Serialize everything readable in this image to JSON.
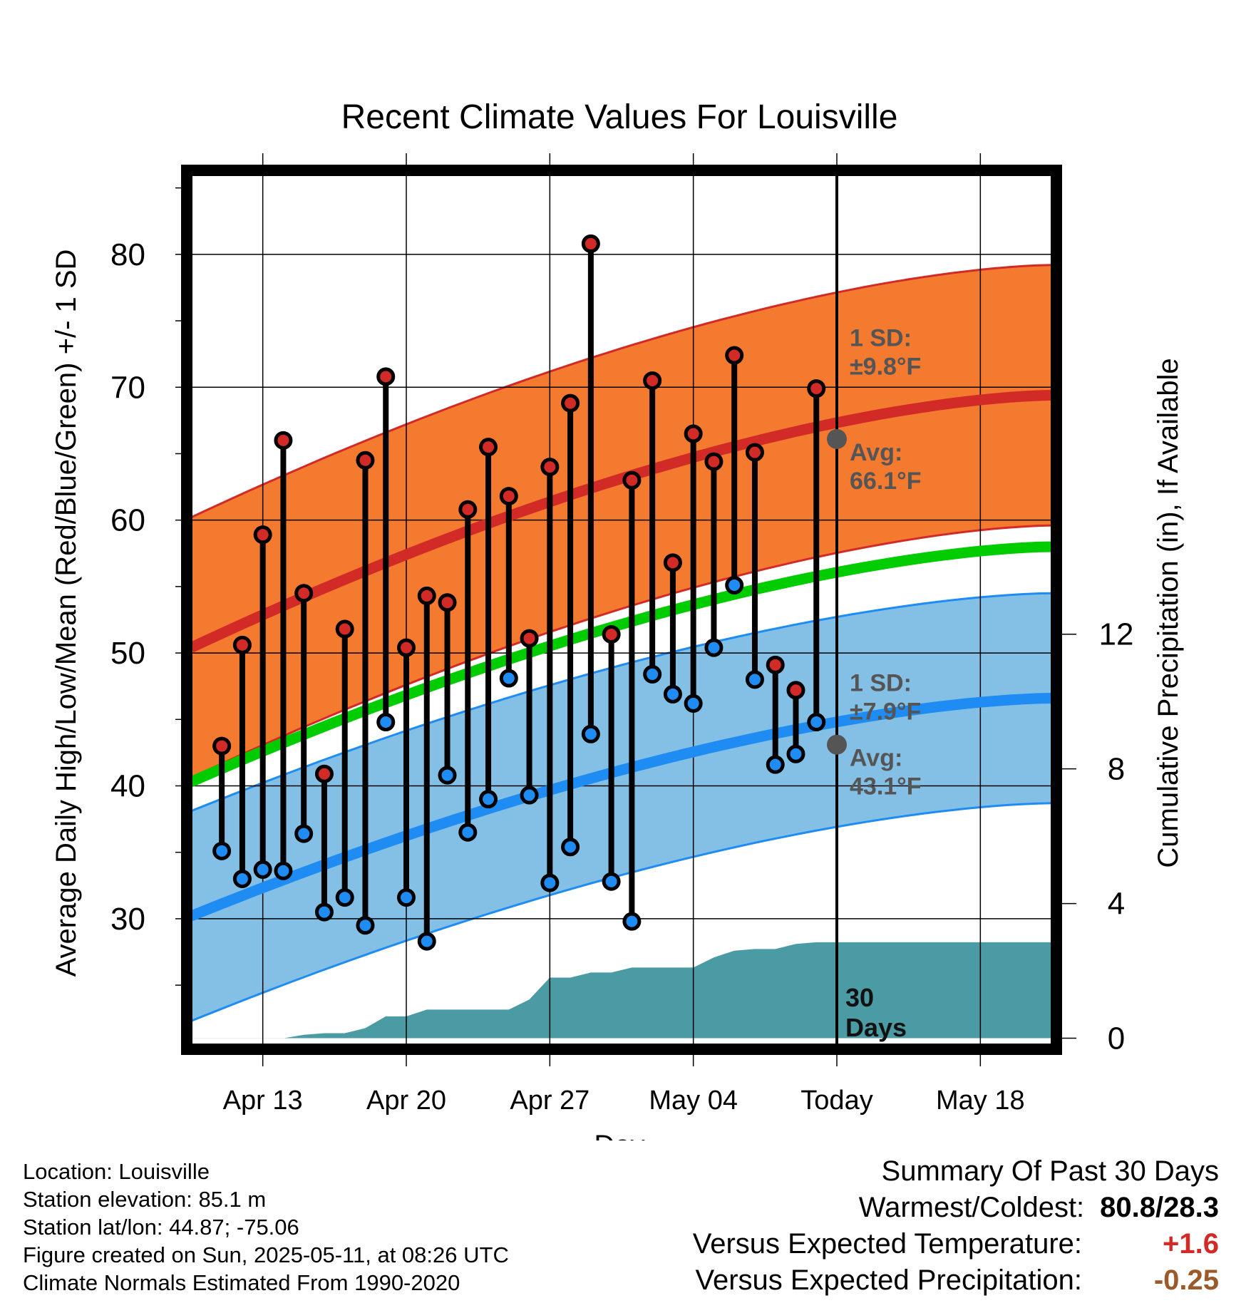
{
  "chart_data": {
    "type": "line",
    "title": "Recent Climate Values For Louisville",
    "xlabel": "Day",
    "ylabel_left": "Average Daily High/Low/Mean (Red/Blue/Green) +/- 1 SD",
    "ylabel_right": "Cumulative Precipitation (in), If Available",
    "x_tick_labels": [
      "Apr 13",
      "Apr 20",
      "Apr 27",
      "May 04",
      "Today",
      "May 18"
    ],
    "x_tick_days": [
      3,
      10,
      17,
      24,
      31,
      38
    ],
    "x_range_days": [
      -0.5,
      41.5
    ],
    "ylim_left": [
      20.5,
      86
    ],
    "yticks_left": [
      30,
      40,
      50,
      60,
      70,
      80
    ],
    "ylim_right": [
      -0.2,
      25.65
    ],
    "yticks_right": [
      0,
      4,
      8,
      12
    ],
    "today_marker": {
      "day": 31,
      "label_line1": "30",
      "label_line2": "Days"
    },
    "normal_high": {
      "start": 50.4,
      "end": 69.4,
      "sd_label": "1 SD:",
      "sd_value": "±9.8°F",
      "avg_label": "Avg:",
      "avg_value": "66.1°F",
      "today_avg": 66.1,
      "sd": 9.8,
      "color": "#d12a27",
      "band_color": "#f47a30"
    },
    "normal_low": {
      "start": 30.2,
      "end": 46.6,
      "sd_label": "1 SD:",
      "sd_value": "±7.9°F",
      "avg_label": "Avg:",
      "avg_value": "43.1°F",
      "today_avg": 43.1,
      "sd": 7.9,
      "color": "#1e8cf2",
      "band_color": "#84c0e6"
    },
    "normal_mean": {
      "start": 40.3,
      "end": 58.0,
      "color": "#00cc00"
    },
    "observed": [
      {
        "day": 1,
        "high": 43.0,
        "low": 35.1
      },
      {
        "day": 2,
        "high": 50.6,
        "low": 33.0
      },
      {
        "day": 3,
        "high": 58.9,
        "low": 33.7
      },
      {
        "day": 4,
        "high": 66.0,
        "low": 33.6
      },
      {
        "day": 5,
        "high": 54.5,
        "low": 36.4
      },
      {
        "day": 6,
        "high": 40.9,
        "low": 30.5
      },
      {
        "day": 7,
        "high": 51.8,
        "low": 31.6
      },
      {
        "day": 8,
        "high": 64.5,
        "low": 29.5
      },
      {
        "day": 9,
        "high": 70.8,
        "low": 44.8
      },
      {
        "day": 10,
        "high": 50.4,
        "low": 31.6
      },
      {
        "day": 11,
        "high": 54.3,
        "low": 28.3
      },
      {
        "day": 12,
        "high": 53.8,
        "low": 40.8
      },
      {
        "day": 13,
        "high": 60.8,
        "low": 36.5
      },
      {
        "day": 14,
        "high": 65.5,
        "low": 39.0
      },
      {
        "day": 15,
        "high": 61.8,
        "low": 48.1
      },
      {
        "day": 16,
        "high": 51.1,
        "low": 39.3
      },
      {
        "day": 17,
        "high": 64.0,
        "low": 32.7
      },
      {
        "day": 18,
        "high": 68.8,
        "low": 35.4
      },
      {
        "day": 19,
        "high": 80.8,
        "low": 43.9
      },
      {
        "day": 20,
        "high": 51.4,
        "low": 32.8
      },
      {
        "day": 21,
        "high": 63.0,
        "low": 29.8
      },
      {
        "day": 22,
        "high": 70.5,
        "low": 48.4
      },
      {
        "day": 23,
        "high": 56.8,
        "low": 46.9
      },
      {
        "day": 24,
        "high": 66.5,
        "low": 46.2
      },
      {
        "day": 25,
        "high": 64.4,
        "low": 50.4
      },
      {
        "day": 26,
        "high": 72.4,
        "low": 55.1
      },
      {
        "day": 27,
        "high": 65.1,
        "low": 48.0
      },
      {
        "day": 28,
        "high": 49.1,
        "low": 41.6
      },
      {
        "day": 29,
        "high": 47.2,
        "low": 42.4
      },
      {
        "day": 30,
        "high": 69.9,
        "low": 44.8
      }
    ],
    "cumulative_precip": {
      "days": [
        -0.5,
        3.0,
        4.0,
        5.0,
        6.0,
        7.0,
        8.0,
        9.0,
        10.0,
        11.0,
        12.0,
        13.0,
        14.0,
        15.0,
        16.0,
        17.0,
        18.0,
        19.0,
        20.0,
        21.0,
        22.0,
        23.0,
        24.0,
        25.0,
        26.0,
        27.0,
        28.0,
        29.0,
        30.0,
        31.0,
        41.5
      ],
      "values": [
        0,
        0,
        0,
        0.1,
        0.15,
        0.15,
        0.3,
        0.65,
        0.65,
        0.85,
        0.85,
        0.85,
        0.85,
        0.85,
        1.15,
        1.8,
        1.8,
        1.95,
        1.95,
        2.1,
        2.1,
        2.1,
        2.1,
        2.4,
        2.6,
        2.65,
        2.65,
        2.8,
        2.85,
        2.85,
        2.85
      ],
      "color": "#4a9ba3"
    }
  },
  "footer": {
    "location": "Location: Louisville",
    "elevation": "Station elevation: 85.1 m",
    "latlon": "Station lat/lon: 44.87; -75.06",
    "created": "Figure created on Sun, 2025-05-11, at 08:26 UTC",
    "normals": "Climate Normals Estimated From 1990-2020"
  },
  "summary": {
    "heading": "Summary Of Past 30 Days",
    "warm_cold_label": "Warmest/Coldest:",
    "warm_cold_value": "80.8/28.3",
    "temp_label": "Versus Expected Temperature:",
    "temp_value": "+1.6",
    "temp_color": "#d12a27",
    "precip_label": "Versus Expected Precipitation:",
    "precip_value": "-0.25",
    "precip_color": "#9a5a2a"
  }
}
